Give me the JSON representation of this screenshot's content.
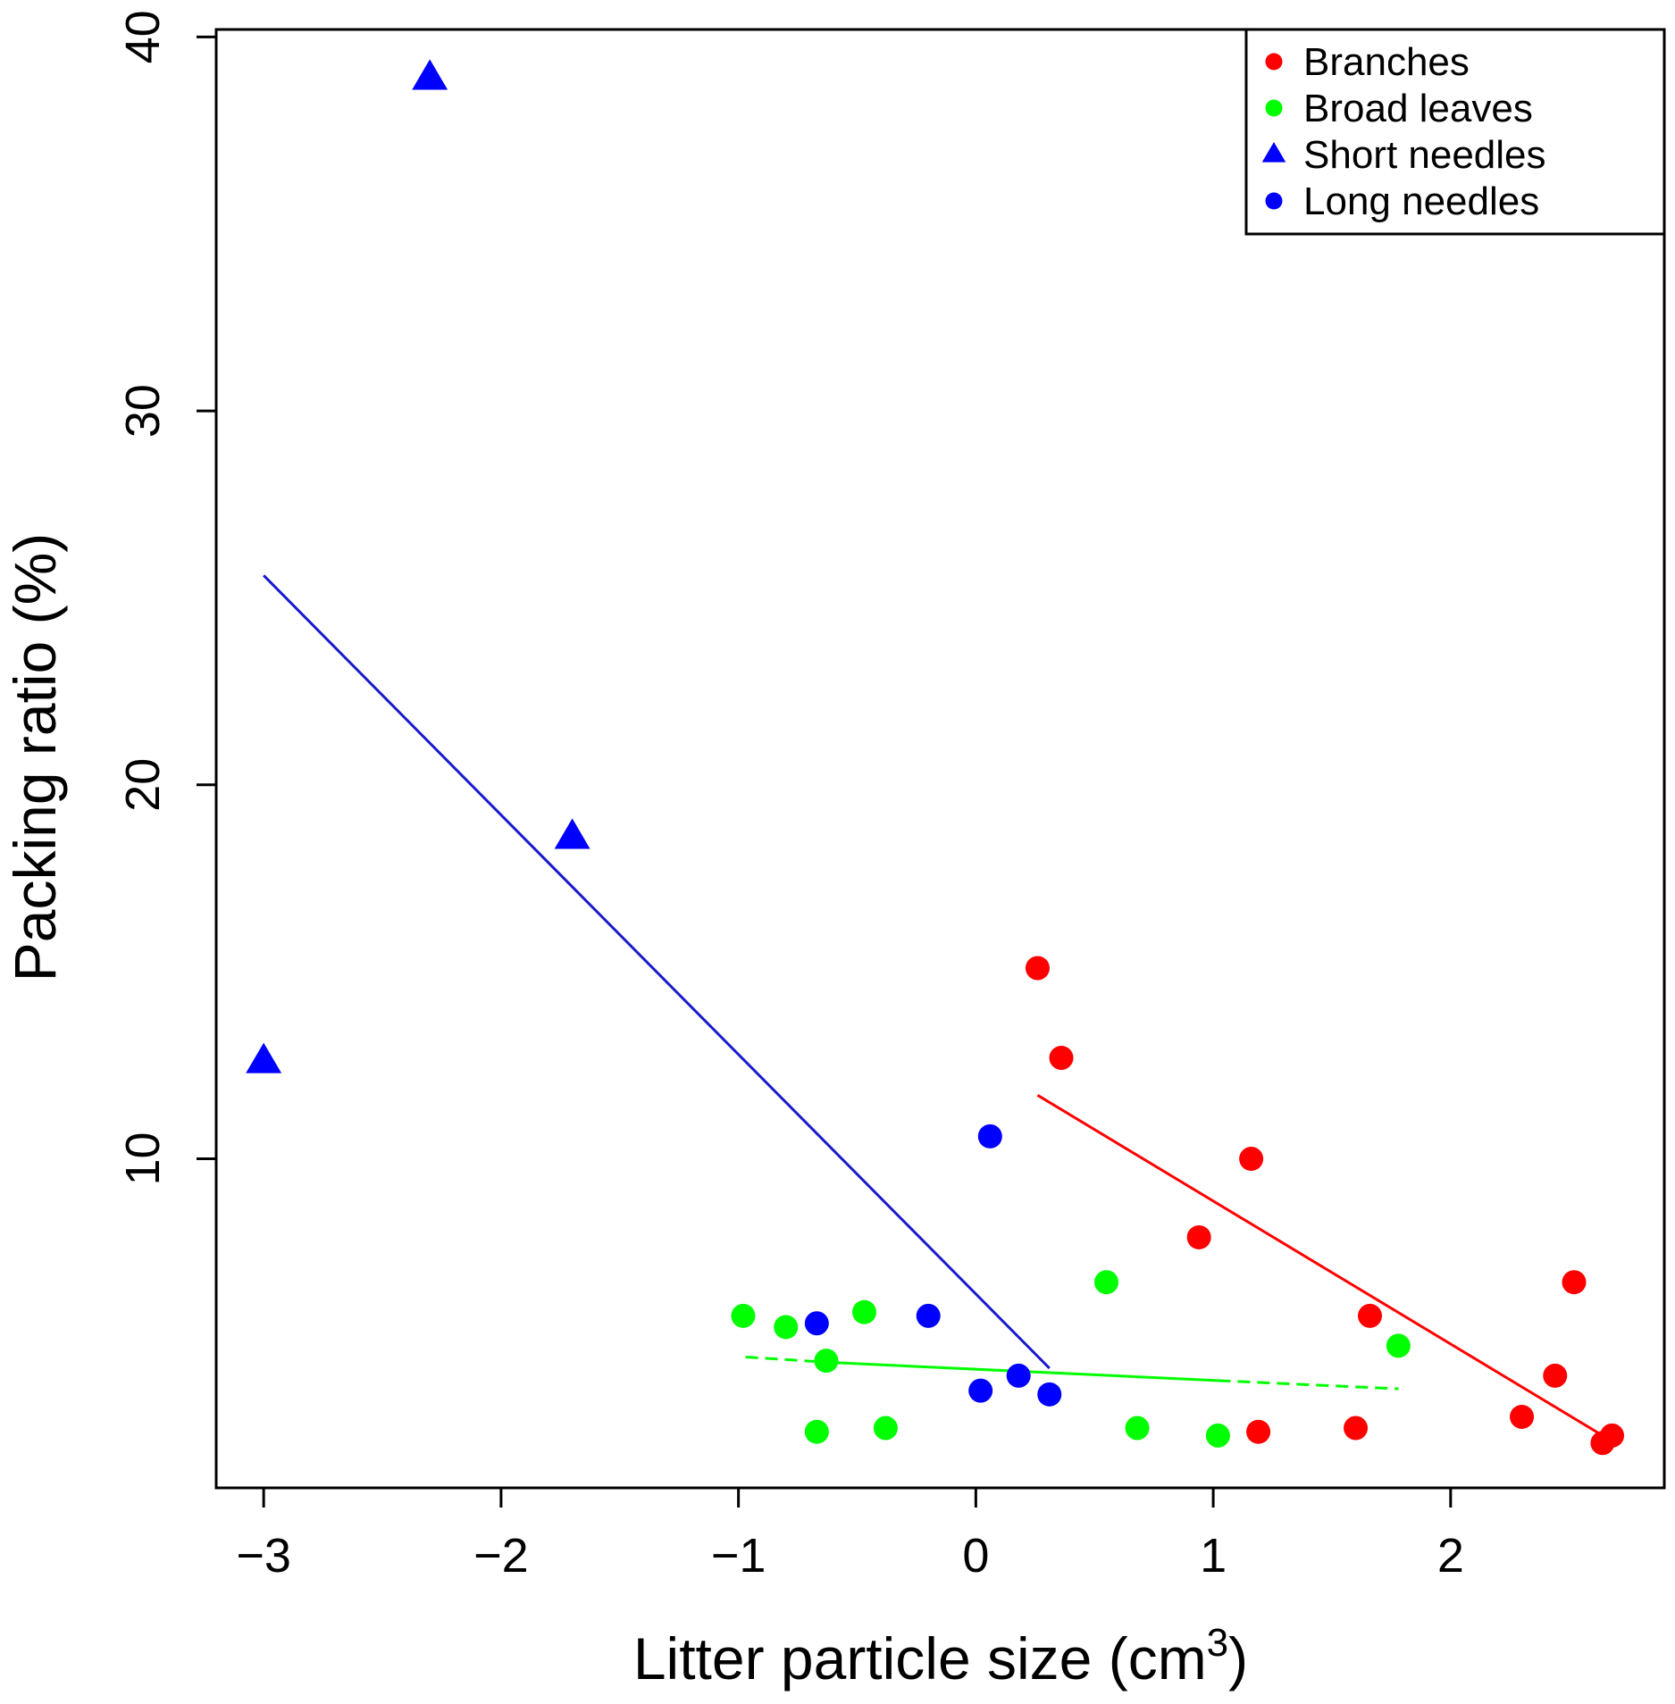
{
  "chart_data": {
    "type": "scatter",
    "title": "",
    "xlabel": "Litter particle size (cm",
    "xlabel_superscript": "3",
    "xlabel_close": ")",
    "ylabel": "Packing ratio (%)",
    "xlim": [
      -3.2,
      2.9
    ],
    "ylim": [
      1.2,
      40.2
    ],
    "xticks": [
      -3,
      -2,
      -1,
      0,
      1,
      2
    ],
    "xtick_labels": [
      "−3",
      "−2",
      "−1",
      "0",
      "1",
      "2"
    ],
    "yticks": [
      10,
      20,
      30,
      40
    ],
    "ytick_labels": [
      "10",
      "20",
      "30",
      "40"
    ],
    "grid": false,
    "legend_position": "top-right",
    "series": [
      {
        "name": "Branches",
        "color": "#ff0000",
        "marker": "circle",
        "x": [
          0.26,
          0.36,
          0.94,
          1.16,
          1.19,
          1.6,
          1.66,
          2.3,
          2.44,
          2.52,
          2.64,
          2.68
        ],
        "y": [
          15.1,
          12.7,
          7.9,
          10.0,
          2.7,
          2.8,
          5.8,
          3.1,
          4.2,
          6.7,
          2.4,
          2.6
        ]
      },
      {
        "name": "Broad leaves",
        "color": "#00ff00",
        "marker": "circle",
        "x": [
          -0.98,
          -0.8,
          -0.67,
          -0.63,
          -0.47,
          -0.38,
          0.55,
          0.68,
          1.02,
          1.78
        ],
        "y": [
          5.8,
          5.5,
          2.7,
          4.6,
          5.9,
          2.8,
          6.7,
          2.8,
          2.6,
          5.0
        ]
      },
      {
        "name": "Short needles",
        "color": "#0000ff",
        "marker": "triangle",
        "x": [
          -3.0,
          -2.3,
          -1.7
        ],
        "y": [
          12.6,
          38.9,
          18.6
        ]
      },
      {
        "name": "Long needles",
        "color": "#0000ff",
        "marker": "circle",
        "x": [
          -0.67,
          -0.2,
          0.02,
          0.06,
          0.18,
          0.31
        ],
        "y": [
          5.6,
          5.8,
          3.8,
          10.6,
          4.2,
          3.7
        ]
      }
    ],
    "fit_lines": [
      {
        "color": "#1a1acc",
        "style": "solid",
        "x": [
          -3.0,
          0.31
        ],
        "y": [
          25.6,
          4.4
        ]
      },
      {
        "color": "#ff0000",
        "style": "solid",
        "x": [
          0.26,
          2.64
        ],
        "y": [
          11.7,
          2.6
        ]
      },
      {
        "color": "#00ff00",
        "style": "dashed",
        "x": [
          -0.97,
          -0.63
        ],
        "y": [
          4.7,
          4.56
        ]
      },
      {
        "color": "#00ff00",
        "style": "solid",
        "x": [
          -0.63,
          1.02
        ],
        "y": [
          4.56,
          4.07
        ]
      },
      {
        "color": "#00ff00",
        "style": "dashed",
        "x": [
          1.02,
          1.78
        ],
        "y": [
          4.07,
          3.85
        ]
      }
    ]
  }
}
